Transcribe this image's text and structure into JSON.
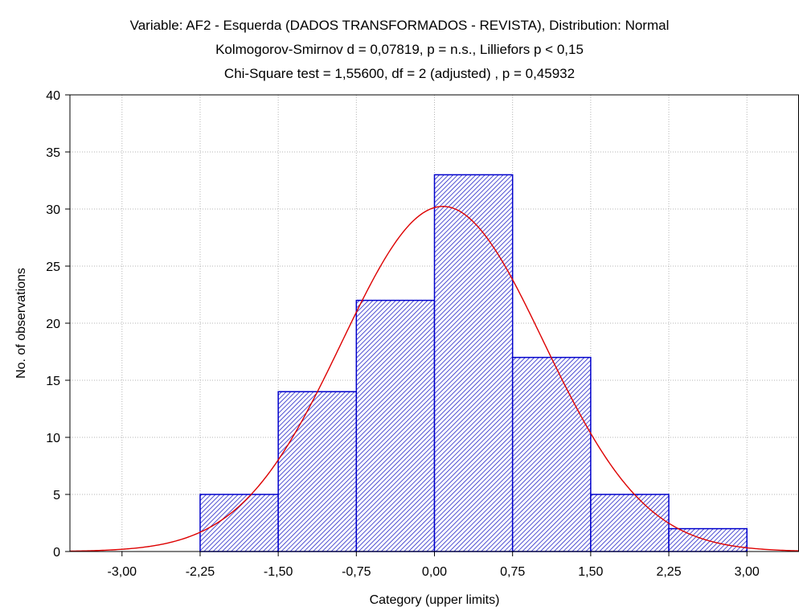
{
  "chart_data": {
    "type": "bar",
    "title": "Variable: AF2 - Esquerda (DADOS TRANSFORMADOS - REVISTA), Distribution: Normal",
    "subtitle": "Kolmogorov-Smirnov d = 0,07819, p = n.s., Lilliefors p < 0,15",
    "subtitle2": "Chi-Square test = 1,55600, df = 2 (adjusted) , p = 0,45932",
    "xlabel": "Category (upper limits)",
    "ylabel": "No. of observations",
    "xlim": [
      -3.5,
      3.5
    ],
    "ylim": [
      0,
      40
    ],
    "x_ticks": [
      -3.0,
      -2.25,
      -1.5,
      -0.75,
      0.0,
      0.75,
      1.5,
      2.25,
      3.0
    ],
    "x_tick_labels": [
      "-3,00",
      "-2,25",
      "-1,50",
      "-0,75",
      "0,00",
      "0,75",
      "1,50",
      "2,25",
      "3,00"
    ],
    "y_ticks": [
      0,
      5,
      10,
      15,
      20,
      25,
      30,
      35,
      40
    ],
    "y_tick_labels": [
      "0",
      "5",
      "10",
      "15",
      "20",
      "25",
      "30",
      "35",
      "40"
    ],
    "bins": [
      {
        "from": -3.0,
        "to": -2.25,
        "count": 0
      },
      {
        "from": -2.25,
        "to": -1.5,
        "count": 5
      },
      {
        "from": -1.5,
        "to": -0.75,
        "count": 14
      },
      {
        "from": -0.75,
        "to": 0.0,
        "count": 22
      },
      {
        "from": 0.0,
        "to": 0.75,
        "count": 33
      },
      {
        "from": 0.75,
        "to": 1.5,
        "count": 17
      },
      {
        "from": 1.5,
        "to": 2.25,
        "count": 5
      },
      {
        "from": 2.25,
        "to": 3.0,
        "count": 2
      }
    ],
    "normal_fit": {
      "mean": 0.08,
      "sd": 0.97,
      "n": 98,
      "bin_width": 0.75
    },
    "grid": true,
    "bar_color": "#0000cc",
    "curve_color": "#dd0000"
  }
}
